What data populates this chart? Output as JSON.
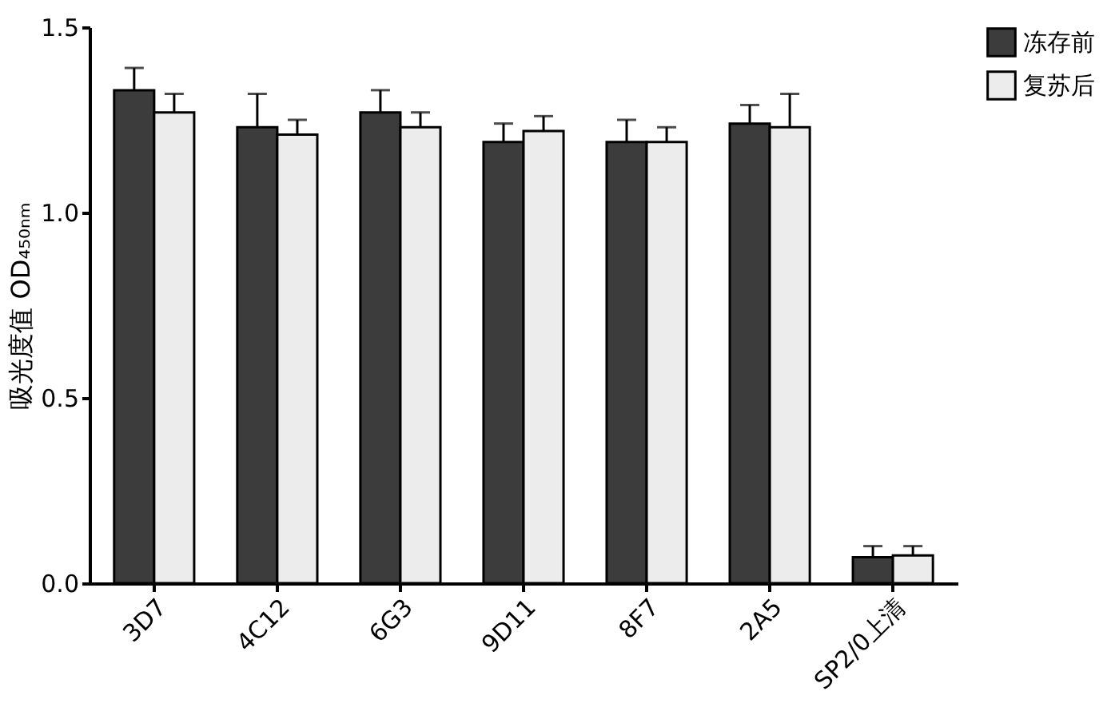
{
  "chart_data": {
    "type": "bar",
    "categories": [
      "3D7",
      "4C12",
      "6G3",
      "9D11",
      "8F7",
      "2A5",
      "SP2/0上清"
    ],
    "ylabel": "吸光度值 OD₄₅₀ₙₘ",
    "ylim": [
      0,
      1.5
    ],
    "yticks": [
      {
        "value": 0,
        "label": "0.0"
      },
      {
        "value": 0.5,
        "label": "0.5"
      },
      {
        "value": 1.0,
        "label": "1.0"
      },
      {
        "value": 1.5,
        "label": "1.5"
      }
    ],
    "grid": false,
    "legend": "top right",
    "series": [
      {
        "name": "冻存前",
        "color": "#3c3c3c",
        "values": [
          1.33,
          1.23,
          1.27,
          1.19,
          1.19,
          1.24,
          0.07
        ],
        "errors": [
          [
            1.33,
            1.39
          ],
          [
            1.23,
            1.32
          ],
          [
            1.27,
            1.33
          ],
          [
            1.19,
            1.24
          ],
          [
            1.19,
            1.25
          ],
          [
            1.24,
            1.29
          ],
          [
            0.07,
            0.1
          ]
        ]
      },
      {
        "name": "复苏后",
        "color": "#ececec",
        "values": [
          1.27,
          1.21,
          1.23,
          1.22,
          1.19,
          1.23,
          0.075
        ],
        "errors": [
          [
            1.27,
            1.32
          ],
          [
            1.21,
            1.25
          ],
          [
            1.23,
            1.27
          ],
          [
            1.22,
            1.26
          ],
          [
            1.19,
            1.23
          ],
          [
            1.23,
            1.32
          ],
          [
            0.075,
            0.1
          ]
        ]
      }
    ]
  }
}
